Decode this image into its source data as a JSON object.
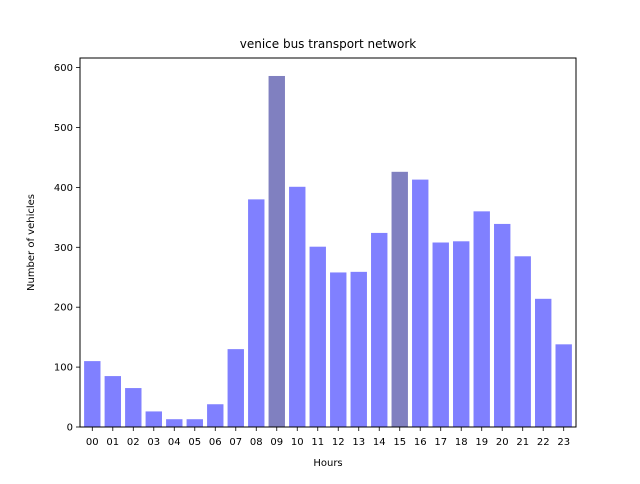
{
  "chart_data": {
    "type": "bar",
    "title": "venice bus transport network",
    "xlabel": "Hours",
    "ylabel": "Number of vehicles",
    "categories": [
      "00",
      "01",
      "02",
      "03",
      "04",
      "05",
      "06",
      "07",
      "08",
      "09",
      "10",
      "11",
      "12",
      "13",
      "14",
      "15",
      "16",
      "17",
      "18",
      "19",
      "20",
      "21",
      "22",
      "23"
    ],
    "values": [
      110,
      85,
      65,
      26,
      13,
      13,
      38,
      130,
      380,
      586,
      401,
      301,
      258,
      259,
      324,
      426,
      413,
      308,
      310,
      360,
      339,
      285,
      214,
      138
    ],
    "highlighted_categories": [
      "09",
      "15"
    ],
    "ylim": [
      0,
      616
    ],
    "yticks": [
      "0",
      "100",
      "200",
      "300",
      "400",
      "500",
      "600"
    ],
    "grid": false,
    "legend": "none",
    "bar_color": "#8080ff",
    "highlight_color": "#8080c0"
  }
}
